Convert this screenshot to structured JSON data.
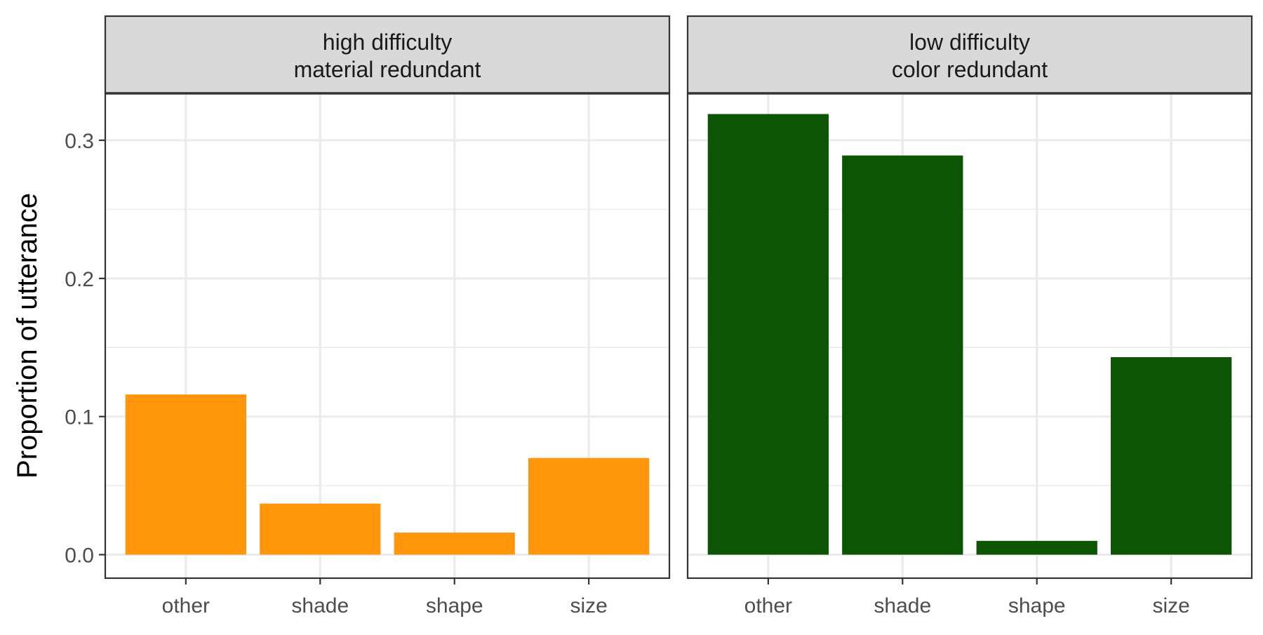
{
  "chart_data": {
    "type": "bar",
    "ylabel": "Proportion of utterance",
    "xlabel": "",
    "ylim": [
      -0.017,
      0.334
    ],
    "yticks": [
      "0.0",
      "0.1",
      "0.2",
      "0.3"
    ],
    "ytick_values": [
      0,
      0.1,
      0.2,
      0.3
    ],
    "categories": [
      "other",
      "shade",
      "shape",
      "size"
    ],
    "grid": true,
    "legend": "none",
    "panels": [
      {
        "strip": [
          "high difficulty",
          "material redundant"
        ],
        "color": "#FF960C",
        "values": [
          0.116,
          0.037,
          0.016,
          0.07
        ]
      },
      {
        "strip": [
          "low difficulty",
          "color redundant"
        ],
        "color": "#0C5505",
        "values": [
          0.319,
          0.289,
          0.01,
          0.143
        ]
      }
    ]
  }
}
